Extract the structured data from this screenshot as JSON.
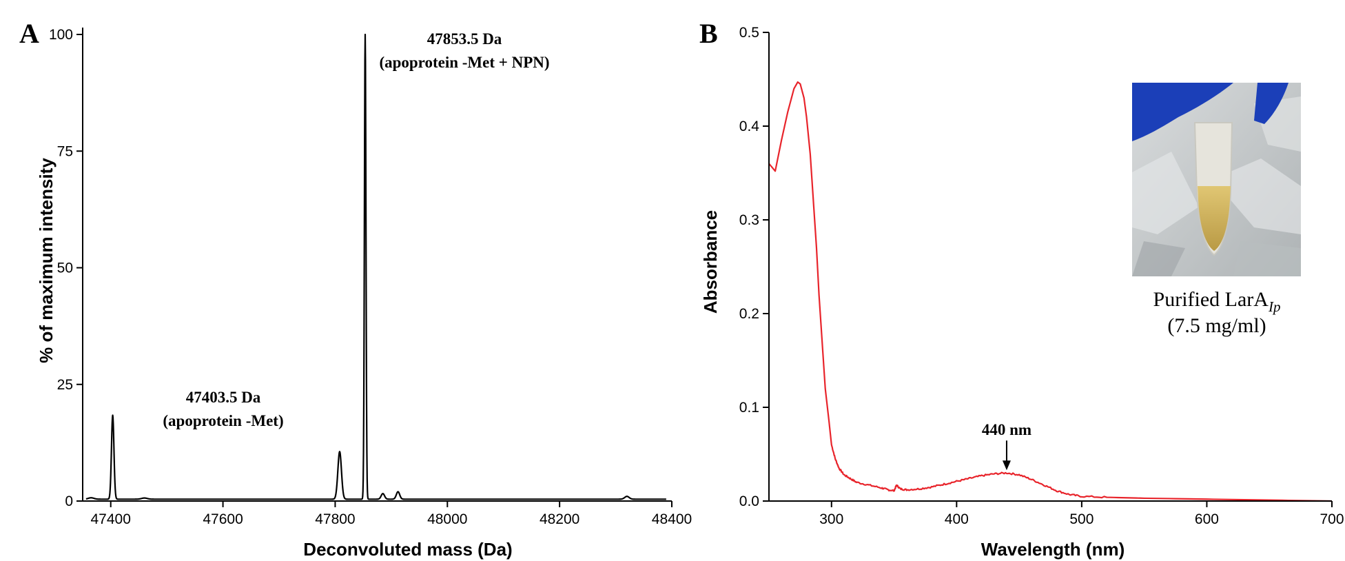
{
  "chart_data": [
    {
      "type": "line",
      "panel_label": "A",
      "xlabel": "Deconvoluted mass (Da)",
      "ylabel": "% of maximum intensity",
      "xlim": [
        47350,
        48400
      ],
      "ylim": [
        0,
        100
      ],
      "xticks": [
        47400,
        47600,
        47800,
        48000,
        48200,
        48400
      ],
      "yticks": [
        0,
        25,
        50,
        75,
        100
      ],
      "x_tick_labels": [
        "47400",
        "47600",
        "47800",
        "48000",
        "48200",
        "48400"
      ],
      "y_tick_labels": [
        "0",
        "25",
        "50",
        "75",
        "100"
      ],
      "color": "#000000",
      "grid": false,
      "baseline": 0.4,
      "peaks": [
        {
          "x": 47403.5,
          "y": 18,
          "width": 2.2
        },
        {
          "x": 47808,
          "y": 10.2,
          "width": 3.2
        },
        {
          "x": 47853.5,
          "y": 100,
          "width": 1.4
        },
        {
          "x": 47885,
          "y": 1.2,
          "width": 3
        },
        {
          "x": 47912,
          "y": 1.6,
          "width": 3
        },
        {
          "x": 48320,
          "y": 0.6,
          "width": 4
        },
        {
          "x": 47365,
          "y": 0.3,
          "width": 5
        },
        {
          "x": 47460,
          "y": 0.25,
          "width": 5
        }
      ],
      "annotations": [
        {
          "line1": "47853.5  Da",
          "line2": "(apoprotein -Met + NPN)",
          "x": 47853.5,
          "y": 100
        },
        {
          "line1": "47403.5  Da",
          "line2": "(apoprotein -Met)",
          "x": 47403.5,
          "y": 18
        }
      ]
    },
    {
      "type": "line",
      "panel_label": "B",
      "xlabel": "Wavelength (nm)",
      "ylabel": "Absorbance",
      "xlim": [
        250,
        700
      ],
      "ylim": [
        0,
        0.5
      ],
      "xticks": [
        300,
        400,
        500,
        600,
        700
      ],
      "yticks": [
        0,
        0.1,
        0.2,
        0.3,
        0.4,
        0.5
      ],
      "x_tick_labels": [
        "300",
        "400",
        "500",
        "600",
        "700"
      ],
      "y_tick_labels": [
        "0.0",
        "0.1",
        "0.2",
        "0.3",
        "0.4",
        "0.5"
      ],
      "color": "#e8242b",
      "grid": false,
      "x": [
        250,
        255,
        260,
        265,
        270,
        273,
        275,
        278,
        280,
        283,
        285,
        288,
        290,
        293,
        295,
        298,
        300,
        303,
        306,
        310,
        315,
        320,
        330,
        340,
        345,
        350,
        352,
        355,
        360,
        370,
        380,
        390,
        400,
        410,
        420,
        430,
        440,
        450,
        460,
        470,
        480,
        490,
        500,
        520,
        550,
        600,
        650,
        700
      ],
      "y": [
        0.36,
        0.352,
        0.385,
        0.415,
        0.44,
        0.447,
        0.445,
        0.43,
        0.41,
        0.37,
        0.33,
        0.27,
        0.22,
        0.16,
        0.12,
        0.085,
        0.06,
        0.045,
        0.035,
        0.028,
        0.024,
        0.02,
        0.017,
        0.014,
        0.012,
        0.011,
        0.017,
        0.013,
        0.012,
        0.013,
        0.015,
        0.018,
        0.021,
        0.024,
        0.027,
        0.029,
        0.03,
        0.028,
        0.023,
        0.017,
        0.011,
        0.007,
        0.005,
        0.004,
        0.003,
        0.002,
        0.001,
        0.0
      ],
      "annotation": {
        "text": "440 nm",
        "x": 440,
        "y": 0.03
      },
      "inset": {
        "caption_main": "Purified LarA",
        "caption_subscript": "Ip",
        "caption_line2": "(7.5 mg/ml)",
        "photo_colors": {
          "glove": "#1b3fb8",
          "ice": "#c7cbcc",
          "tube": "#e6e4dc",
          "liquid": "#d6b860"
        }
      }
    }
  ]
}
